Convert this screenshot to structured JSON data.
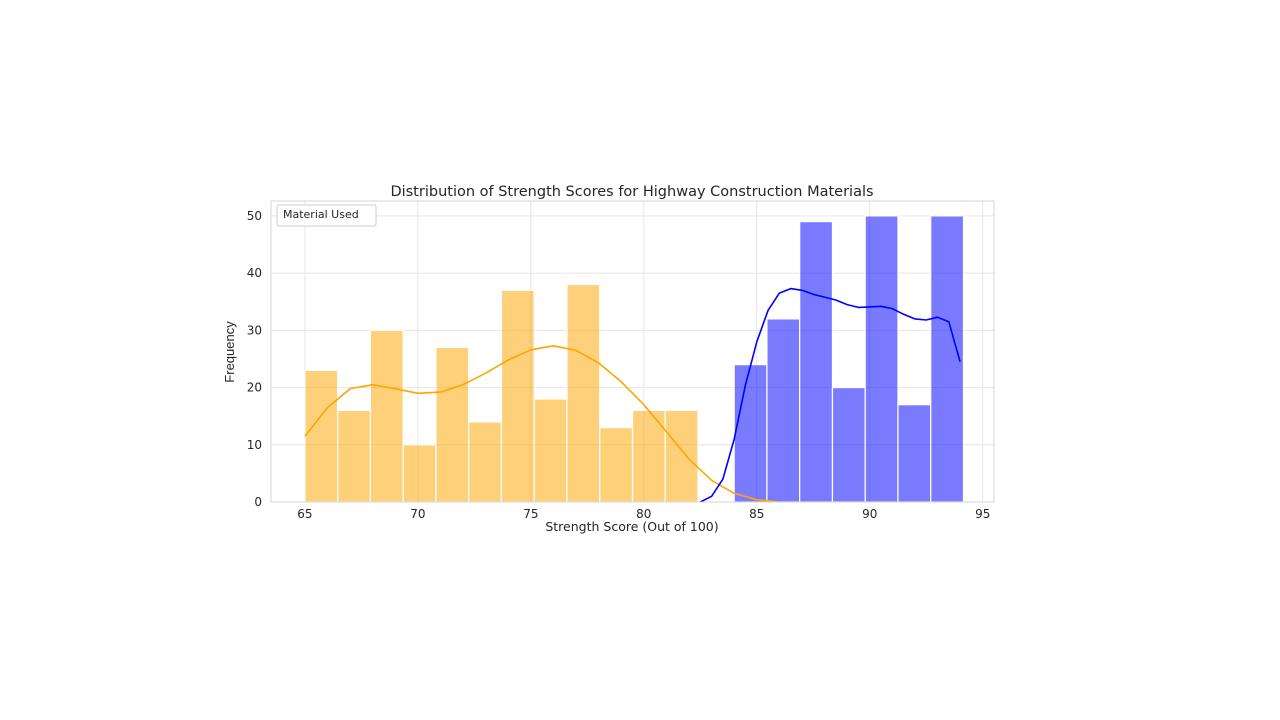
{
  "chart_data": {
    "type": "bar",
    "title": "Distribution of Strength Scores for Highway Construction Materials",
    "xlabel": "Strength Score (Out of 100)",
    "ylabel": "Frequency",
    "xlim": [
      63.5,
      95.5
    ],
    "ylim": [
      0,
      52.6
    ],
    "xticks": [
      65,
      70,
      75,
      80,
      85,
      90,
      95
    ],
    "yticks": [
      0,
      10,
      20,
      30,
      40,
      50
    ],
    "grid": true,
    "legend": {
      "title": "Material Used",
      "position": "top-left"
    },
    "series": [
      {
        "color": "#ffa500",
        "bin_width": 1.45,
        "bins": [
          {
            "x0": 65.0,
            "count": 23
          },
          {
            "x0": 66.45,
            "count": 16
          },
          {
            "x0": 67.9,
            "count": 30
          },
          {
            "x0": 69.35,
            "count": 10
          },
          {
            "x0": 70.8,
            "count": 27
          },
          {
            "x0": 72.25,
            "count": 14
          },
          {
            "x0": 73.7,
            "count": 37
          },
          {
            "x0": 75.15,
            "count": 18
          },
          {
            "x0": 76.6,
            "count": 38
          },
          {
            "x0": 78.05,
            "count": 13
          },
          {
            "x0": 79.5,
            "count": 16
          },
          {
            "x0": 80.95,
            "count": 16
          }
        ],
        "kde": [
          [
            65.0,
            11.5
          ],
          [
            66.0,
            16.5
          ],
          [
            67.0,
            19.8
          ],
          [
            68.0,
            20.5
          ],
          [
            69.0,
            19.8
          ],
          [
            70.0,
            19.0
          ],
          [
            71.0,
            19.2
          ],
          [
            72.0,
            20.5
          ],
          [
            73.0,
            22.5
          ],
          [
            74.0,
            24.8
          ],
          [
            75.0,
            26.6
          ],
          [
            76.0,
            27.3
          ],
          [
            77.0,
            26.5
          ],
          [
            78.0,
            24.3
          ],
          [
            79.0,
            21.0
          ],
          [
            80.0,
            17.0
          ],
          [
            81.0,
            12.3
          ],
          [
            82.0,
            7.5
          ],
          [
            83.0,
            3.8
          ],
          [
            84.0,
            1.5
          ],
          [
            85.0,
            0.4
          ],
          [
            86.0,
            0.0
          ]
        ]
      },
      {
        "color": "#0000ff",
        "bin_width": 1.45,
        "bins": [
          {
            "x0": 84.0,
            "count": 24
          },
          {
            "x0": 85.45,
            "count": 32
          },
          {
            "x0": 86.9,
            "count": 49
          },
          {
            "x0": 88.35,
            "count": 20
          },
          {
            "x0": 89.8,
            "count": 50
          },
          {
            "x0": 91.25,
            "count": 17
          },
          {
            "x0": 92.7,
            "count": 50
          }
        ],
        "kde": [
          [
            82.5,
            0.0
          ],
          [
            83.0,
            1.0
          ],
          [
            83.5,
            4.0
          ],
          [
            84.0,
            11.0
          ],
          [
            84.5,
            20.5
          ],
          [
            85.0,
            28.0
          ],
          [
            85.5,
            33.5
          ],
          [
            86.0,
            36.5
          ],
          [
            86.5,
            37.3
          ],
          [
            87.0,
            37.0
          ],
          [
            87.5,
            36.3
          ],
          [
            88.0,
            35.8
          ],
          [
            88.5,
            35.3
          ],
          [
            89.0,
            34.5
          ],
          [
            89.5,
            34.0
          ],
          [
            90.0,
            34.1
          ],
          [
            90.5,
            34.2
          ],
          [
            91.0,
            33.8
          ],
          [
            91.5,
            32.8
          ],
          [
            92.0,
            32.0
          ],
          [
            92.5,
            31.8
          ],
          [
            93.0,
            32.3
          ],
          [
            93.5,
            31.5
          ],
          [
            94.0,
            24.5
          ]
        ]
      }
    ]
  }
}
